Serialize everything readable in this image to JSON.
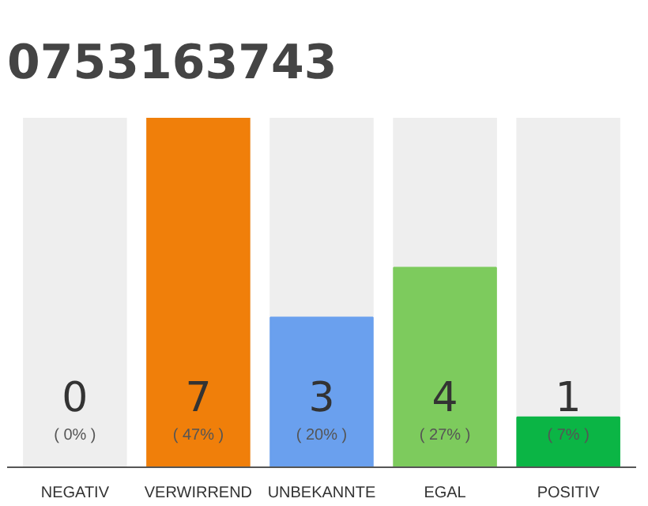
{
  "chart_data": {
    "type": "bar",
    "title": "0753163743",
    "categories": [
      "NEGATIV",
      "VERWIRREND",
      "UNBEKANNTE",
      "EGAL",
      "POSITIV"
    ],
    "values": [
      0,
      7,
      3,
      4,
      1
    ],
    "colors": [
      "#cccccc",
      "#f07f0a",
      "#6aa0ee",
      "#7dcb5d",
      "#0bb545"
    ],
    "ylim": [
      0,
      7
    ],
    "tick_labels": "x",
    "grid": false,
    "data_labels": true,
    "annotations": [
      "( 0% )",
      "( 47% )",
      "( 20% )",
      "( 27% )",
      "( 7% )"
    ]
  }
}
